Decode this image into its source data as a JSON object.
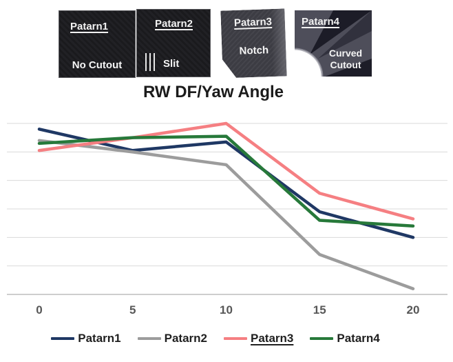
{
  "panels": [
    {
      "label": "Patarn1",
      "caption": "No Cutout"
    },
    {
      "label": "Patarn2",
      "caption": "Slit"
    },
    {
      "label": "Patarn3",
      "caption": "Notch"
    },
    {
      "label": "Patarn4",
      "caption": "Curved Cutout"
    }
  ],
  "chart_data": {
    "type": "line",
    "title": "RW DF/Yaw Angle",
    "xlabel": "",
    "ylabel": "",
    "categories": [
      "0",
      "5",
      "10",
      "15",
      "20"
    ],
    "series": [
      {
        "name": "Patarn1",
        "color": "#1f3864",
        "underlined": false,
        "values": [
          5.8,
          5.05,
          5.35,
          2.9,
          2.0
        ]
      },
      {
        "name": "Patarn2",
        "color": "#9c9c9c",
        "underlined": false,
        "values": [
          5.4,
          5.0,
          4.55,
          1.4,
          0.2
        ]
      },
      {
        "name": "Patarn3",
        "color": "#f57f82",
        "underlined": true,
        "values": [
          5.05,
          5.5,
          6.0,
          3.55,
          2.65
        ]
      },
      {
        "name": "Patarn4",
        "color": "#27793a",
        "underlined": false,
        "values": [
          5.3,
          5.5,
          5.55,
          2.6,
          2.4
        ]
      }
    ],
    "ylim": [
      0,
      6
    ],
    "y_axis_labels_visible": false,
    "grid": "horizontal",
    "legend_position": "bottom"
  }
}
